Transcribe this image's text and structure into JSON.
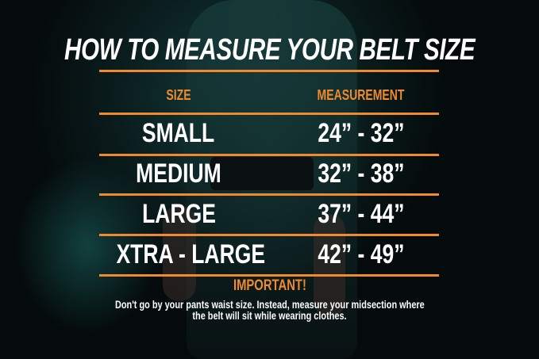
{
  "title": "HOW TO MEASURE YOUR BELT SIZE",
  "table": {
    "headers": [
      "SIZE",
      "MEASUREMENT"
    ],
    "rows": [
      {
        "size": "SMALL",
        "measurement": "24” - 32”"
      },
      {
        "size": "MEDIUM",
        "measurement": "32” - 38”"
      },
      {
        "size": "LARGE",
        "measurement": "37” - 44”"
      },
      {
        "size": "XTRA - LARGE",
        "measurement": "42” - 49”"
      }
    ]
  },
  "note": {
    "heading": "IMPORTANT!",
    "line1": "Don't go by your pants waist size. Instead, measure your midsection where",
    "line2": "the belt will sit while wearing clothes."
  },
  "colors": {
    "accent": "#f08a2c",
    "text": "#ffffff",
    "background": "#0a1c1d"
  }
}
